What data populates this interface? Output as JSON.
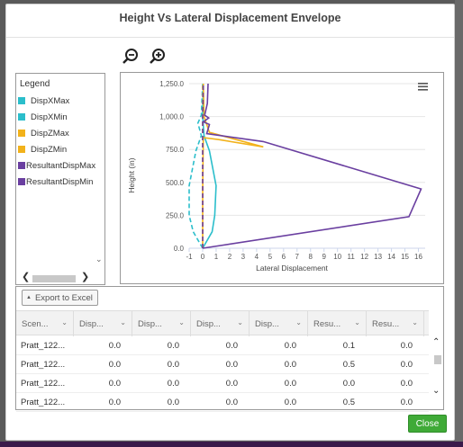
{
  "dialog": {
    "title": "Height Vs Lateral Displacement Envelope",
    "close_label": "Close",
    "zoom_out_icon": "zoom-out-icon",
    "zoom_in_icon": "zoom-in-icon"
  },
  "legend": {
    "title": "Legend",
    "items": [
      {
        "label": "DispXMax",
        "color": "#2bbecb"
      },
      {
        "label": "DispXMin",
        "color": "#2bbecb"
      },
      {
        "label": "DispZMax",
        "color": "#f2b21b"
      },
      {
        "label": "DispZMin",
        "color": "#f2b21b"
      },
      {
        "label": "ResultantDispMax",
        "color": "#6a3fa0"
      },
      {
        "label": "ResultantDispMin",
        "color": "#6a3fa0"
      }
    ]
  },
  "chart_data": {
    "type": "line",
    "xlabel": "Lateral Displacement",
    "ylabel": "Height (in)",
    "xlim": [
      -1,
      16.5
    ],
    "ylim": [
      0,
      1250
    ],
    "x_ticks": [
      "-1",
      "0",
      "1",
      "2",
      "3",
      "4",
      "5",
      "6",
      "7",
      "8",
      "9",
      "10",
      "11",
      "12",
      "13",
      "14",
      "15",
      "16"
    ],
    "y_ticks": [
      "0.0",
      "250.0",
      "500.0",
      "750.0",
      "1,000.0",
      "1,250.0"
    ],
    "series": [
      {
        "name": "DispXMax",
        "color": "#2bbecb",
        "dash": "solid",
        "points": [
          [
            0,
            0
          ],
          [
            0.7,
            125
          ],
          [
            0.9,
            250
          ],
          [
            1.0,
            475
          ],
          [
            0.5,
            740
          ],
          [
            0.1,
            855
          ],
          [
            0.0,
            1000
          ],
          [
            0.05,
            1250
          ]
        ]
      },
      {
        "name": "DispXMin",
        "color": "#2bbecb",
        "dash": "dashed",
        "points": [
          [
            0,
            0
          ],
          [
            -0.7,
            125
          ],
          [
            -1.0,
            250
          ],
          [
            -1.0,
            475
          ],
          [
            -0.5,
            740
          ],
          [
            -0.1,
            855
          ],
          [
            -0.35,
            950
          ],
          [
            -0.1,
            1010
          ],
          [
            0.0,
            1250
          ]
        ]
      },
      {
        "name": "DispZMax",
        "color": "#f2b21b",
        "dash": "solid",
        "points": [
          [
            0,
            0
          ],
          [
            0,
            440
          ],
          [
            0.05,
            840
          ],
          [
            1.2,
            825
          ],
          [
            4.5,
            770
          ],
          [
            0.5,
            880
          ],
          [
            0.1,
            1000
          ],
          [
            0.05,
            1250
          ]
        ]
      },
      {
        "name": "DispZMin",
        "color": "#f2b21b",
        "dash": "dashed",
        "points": [
          [
            0,
            0
          ],
          [
            0,
            1250
          ]
        ]
      },
      {
        "name": "ResultantDispMax",
        "color": "#6a3fa0",
        "dash": "solid",
        "points": [
          [
            0,
            0
          ],
          [
            15.3,
            240
          ],
          [
            16.2,
            450
          ],
          [
            4.5,
            810
          ],
          [
            0.3,
            870
          ],
          [
            0.5,
            940
          ],
          [
            0.05,
            960
          ],
          [
            0.45,
            990
          ],
          [
            0.15,
            1010
          ],
          [
            0.35,
            1100
          ],
          [
            0.4,
            1250
          ]
        ]
      },
      {
        "name": "ResultantDispMin",
        "color": "#6a3fa0",
        "dash": "dashed",
        "points": [
          [
            0,
            0
          ],
          [
            0,
            1000
          ],
          [
            0.05,
            1250
          ]
        ]
      }
    ]
  },
  "grid": {
    "export_label": "Export to Excel",
    "columns": [
      "Scen...",
      "Disp...",
      "Disp...",
      "Disp...",
      "Disp...",
      "Resu...",
      "Resu..."
    ],
    "rows": [
      [
        "Pratt_122...",
        "0.0",
        "0.0",
        "0.0",
        "0.0",
        "0.1",
        "0.0"
      ],
      [
        "Pratt_122...",
        "0.0",
        "0.0",
        "0.0",
        "0.0",
        "0.5",
        "0.0"
      ],
      [
        "Pratt_122...",
        "0.0",
        "0.0",
        "0.0",
        "0.0",
        "0.0",
        "0.0"
      ],
      [
        "Pratt_122...",
        "0.0",
        "0.0",
        "0.0",
        "0.0",
        "0.5",
        "0.0"
      ]
    ]
  }
}
